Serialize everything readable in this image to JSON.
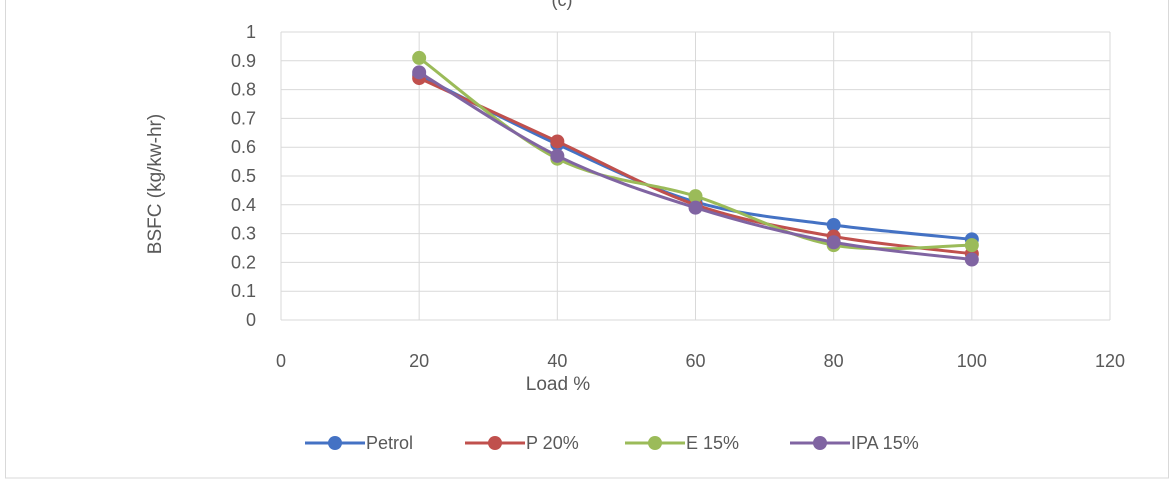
{
  "panel_label": "(c)",
  "chart_data": {
    "type": "line",
    "xlabel": "Load %",
    "ylabel": "BSFC (kg/kw-hr)",
    "xlim": [
      0,
      120
    ],
    "ylim": [
      0,
      1
    ],
    "x_ticks": [
      0,
      20,
      40,
      60,
      80,
      100,
      120
    ],
    "y_ticks": [
      0,
      0.1,
      0.2,
      0.3,
      0.4,
      0.5,
      0.6,
      0.7,
      0.8,
      0.9,
      1
    ],
    "x_tick_labels": [
      "0",
      "20",
      "40",
      "60",
      "80",
      "100",
      "120"
    ],
    "y_tick_labels": [
      "0",
      "0.1",
      "0.2",
      "0.3",
      "0.4",
      "0.5",
      "0.6",
      "0.7",
      "0.8",
      "0.9",
      "1"
    ],
    "grid": true,
    "legend_position": "bottom",
    "x": [
      20,
      40,
      60,
      80,
      100
    ],
    "series": [
      {
        "name": "Petrol",
        "color": "#4472C4",
        "values": [
          0.85,
          0.61,
          0.41,
          0.33,
          0.28
        ]
      },
      {
        "name": "P 20%",
        "color": "#C0504D",
        "values": [
          0.84,
          0.62,
          0.4,
          0.29,
          0.23
        ]
      },
      {
        "name": "E 15%",
        "color": "#9BBB59",
        "values": [
          0.91,
          0.56,
          0.43,
          0.26,
          0.26
        ]
      },
      {
        "name": "IPA 15%",
        "color": "#8064A2",
        "values": [
          0.86,
          0.57,
          0.39,
          0.27,
          0.21
        ]
      }
    ]
  }
}
